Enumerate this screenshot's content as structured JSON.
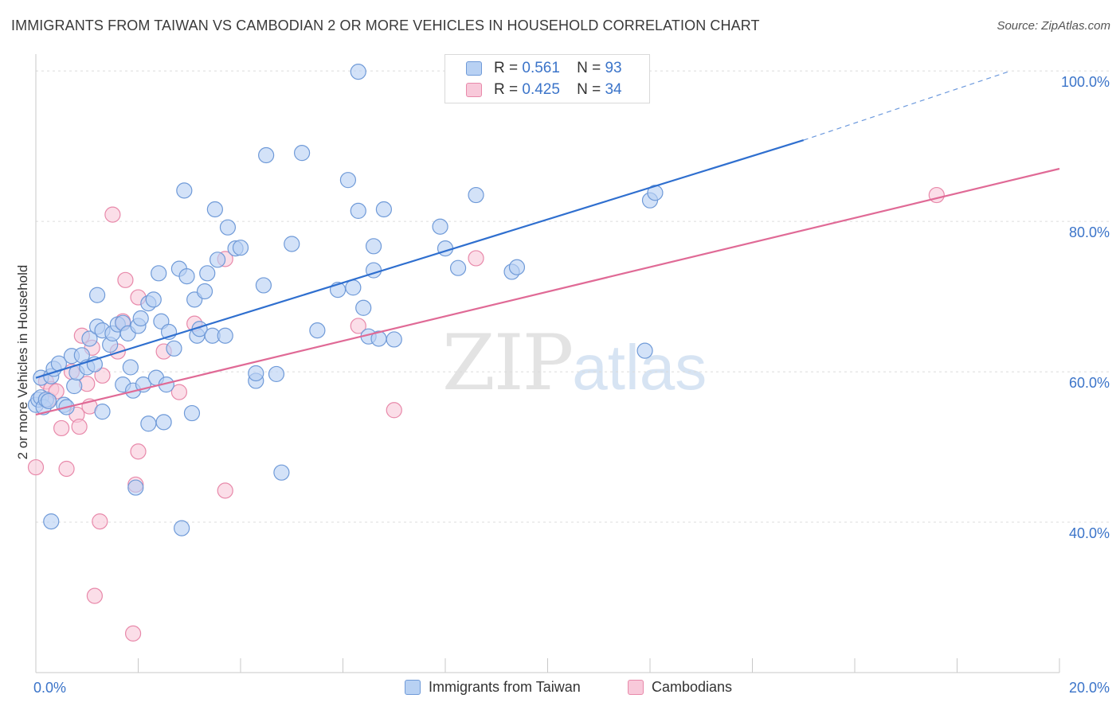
{
  "header": {
    "title": "IMMIGRANTS FROM TAIWAN VS CAMBODIAN 2 OR MORE VEHICLES IN HOUSEHOLD CORRELATION CHART",
    "source": "Source: ZipAtlas.com"
  },
  "watermark": {
    "zip": "ZIP",
    "atlas": "atlas"
  },
  "legend": {
    "rows": [
      {
        "r_label": "R =",
        "r_value": "0.561",
        "n_label": "N =",
        "n_value": "93"
      },
      {
        "r_label": "R =",
        "r_value": "0.425",
        "n_label": "N =",
        "n_value": "34"
      }
    ]
  },
  "bottom_legend": {
    "taiwan": "Immigrants from Taiwan",
    "cambodians": "Cambodians"
  },
  "colors": {
    "taiwan_fill": "#b8d1f3",
    "taiwan_stroke": "#6f9ad8",
    "taiwan_line": "#2f6fcf",
    "cambodian_fill": "#f8c9da",
    "cambodian_stroke": "#e889aa",
    "cambodian_line": "#e06a96",
    "tick_label": "#3b74c9",
    "grid": "#dcdcdc"
  },
  "chart_data": {
    "type": "scatter",
    "title": "IMMIGRANTS FROM TAIWAN VS CAMBODIAN 2 OR MORE VEHICLES IN HOUSEHOLD CORRELATION CHART",
    "xlabel": "",
    "ylabel": "2 or more Vehicles in Household",
    "xlim": [
      0,
      20
    ],
    "ylim": [
      20,
      101.5
    ],
    "x_tick_labels": [
      {
        "value": 0,
        "label": "0.0%"
      },
      {
        "value": 20,
        "label": "20.0%"
      }
    ],
    "y_tick_labels": [
      {
        "value": 40,
        "label": "40.0%"
      },
      {
        "value": 60,
        "label": "60.0%"
      },
      {
        "value": 80,
        "label": "80.0%"
      },
      {
        "value": 100,
        "label": "100.0%"
      }
    ],
    "x_minor_ticks": [
      2,
      4,
      6,
      8,
      10,
      12,
      14,
      16,
      18,
      20
    ],
    "grid": true,
    "series": [
      {
        "name": "Immigrants from Taiwan",
        "r": 0.561,
        "n": 93,
        "trend": {
          "x0": 0.0,
          "y0": 59.2,
          "x1": 15.0,
          "y1": 90.8,
          "dash_to_x": 19.0,
          "dash_to_y": 99.9
        },
        "points": [
          [
            0.0,
            55.6
          ],
          [
            0.05,
            56.3
          ],
          [
            0.1,
            59.2
          ],
          [
            0.1,
            56.6
          ],
          [
            0.15,
            55.3
          ],
          [
            0.2,
            56.3
          ],
          [
            0.25,
            56.1
          ],
          [
            0.3,
            59.4
          ],
          [
            0.35,
            60.4
          ],
          [
            0.45,
            61.1
          ],
          [
            0.55,
            55.6
          ],
          [
            0.6,
            55.3
          ],
          [
            0.7,
            62.1
          ],
          [
            0.75,
            58.1
          ],
          [
            0.8,
            59.9
          ],
          [
            0.9,
            62.2
          ],
          [
            1.0,
            60.6
          ],
          [
            1.05,
            64.4
          ],
          [
            1.15,
            61.0
          ],
          [
            1.2,
            66.0
          ],
          [
            1.2,
            70.2
          ],
          [
            1.3,
            65.5
          ],
          [
            1.3,
            54.7
          ],
          [
            1.45,
            63.6
          ],
          [
            1.5,
            65.1
          ],
          [
            1.6,
            66.3
          ],
          [
            1.7,
            58.3
          ],
          [
            1.7,
            66.5
          ],
          [
            1.8,
            65.1
          ],
          [
            1.85,
            60.6
          ],
          [
            1.9,
            57.5
          ],
          [
            1.95,
            44.6
          ],
          [
            2.0,
            66.1
          ],
          [
            2.05,
            67.1
          ],
          [
            2.1,
            58.3
          ],
          [
            2.2,
            53.1
          ],
          [
            2.2,
            69.1
          ],
          [
            2.3,
            69.6
          ],
          [
            2.35,
            59.2
          ],
          [
            2.4,
            73.1
          ],
          [
            2.45,
            66.7
          ],
          [
            2.5,
            53.3
          ],
          [
            2.55,
            58.3
          ],
          [
            2.6,
            65.3
          ],
          [
            2.7,
            63.1
          ],
          [
            2.8,
            73.7
          ],
          [
            2.85,
            39.2
          ],
          [
            2.9,
            84.1
          ],
          [
            2.95,
            72.7
          ],
          [
            3.05,
            54.5
          ],
          [
            3.1,
            69.6
          ],
          [
            3.15,
            64.8
          ],
          [
            3.2,
            65.7
          ],
          [
            3.3,
            70.7
          ],
          [
            3.35,
            73.1
          ],
          [
            3.45,
            64.8
          ],
          [
            3.5,
            81.6
          ],
          [
            3.55,
            74.9
          ],
          [
            3.7,
            64.8
          ],
          [
            3.75,
            79.2
          ],
          [
            3.9,
            76.4
          ],
          [
            4.0,
            76.5
          ],
          [
            4.3,
            58.8
          ],
          [
            4.3,
            59.8
          ],
          [
            4.45,
            71.5
          ],
          [
            4.5,
            88.8
          ],
          [
            4.7,
            59.7
          ],
          [
            4.8,
            46.6
          ],
          [
            5.0,
            77.0
          ],
          [
            5.2,
            89.1
          ],
          [
            5.5,
            65.5
          ],
          [
            5.9,
            70.9
          ],
          [
            6.1,
            85.5
          ],
          [
            6.2,
            71.2
          ],
          [
            6.3,
            81.4
          ],
          [
            6.3,
            99.9
          ],
          [
            6.4,
            68.5
          ],
          [
            6.5,
            64.7
          ],
          [
            6.6,
            73.5
          ],
          [
            6.6,
            76.7
          ],
          [
            6.7,
            64.4
          ],
          [
            6.8,
            81.6
          ],
          [
            7.0,
            64.3
          ],
          [
            7.9,
            79.3
          ],
          [
            8.0,
            76.4
          ],
          [
            8.25,
            73.8
          ],
          [
            8.6,
            83.5
          ],
          [
            9.3,
            73.3
          ],
          [
            9.4,
            73.9
          ],
          [
            11.9,
            62.8
          ],
          [
            12.0,
            82.8
          ],
          [
            12.1,
            83.8
          ],
          [
            0.3,
            40.1
          ]
        ]
      },
      {
        "name": "Cambodians",
        "r": 0.425,
        "n": 34,
        "trend": {
          "x0": 0.0,
          "y0": 54.3,
          "x1": 20.0,
          "y1": 87.0
        },
        "points": [
          [
            0.0,
            47.3
          ],
          [
            0.2,
            58.7
          ],
          [
            0.25,
            56.3
          ],
          [
            0.3,
            57.7
          ],
          [
            0.4,
            57.4
          ],
          [
            0.5,
            52.5
          ],
          [
            0.6,
            47.1
          ],
          [
            0.7,
            60.0
          ],
          [
            0.8,
            54.3
          ],
          [
            0.85,
            52.7
          ],
          [
            0.9,
            64.8
          ],
          [
            1.0,
            58.4
          ],
          [
            1.05,
            55.4
          ],
          [
            1.1,
            63.2
          ],
          [
            1.15,
            30.2
          ],
          [
            1.25,
            40.1
          ],
          [
            1.3,
            59.5
          ],
          [
            1.5,
            80.9
          ],
          [
            1.6,
            62.7
          ],
          [
            1.7,
            66.7
          ],
          [
            1.75,
            72.2
          ],
          [
            1.9,
            25.2
          ],
          [
            1.95,
            45.0
          ],
          [
            2.0,
            69.9
          ],
          [
            2.0,
            49.4
          ],
          [
            2.5,
            62.7
          ],
          [
            2.8,
            57.3
          ],
          [
            3.1,
            66.4
          ],
          [
            3.7,
            75.0
          ],
          [
            3.7,
            44.2
          ],
          [
            6.3,
            66.1
          ],
          [
            7.0,
            54.9
          ],
          [
            8.6,
            75.1
          ],
          [
            17.6,
            83.5
          ]
        ]
      }
    ]
  }
}
